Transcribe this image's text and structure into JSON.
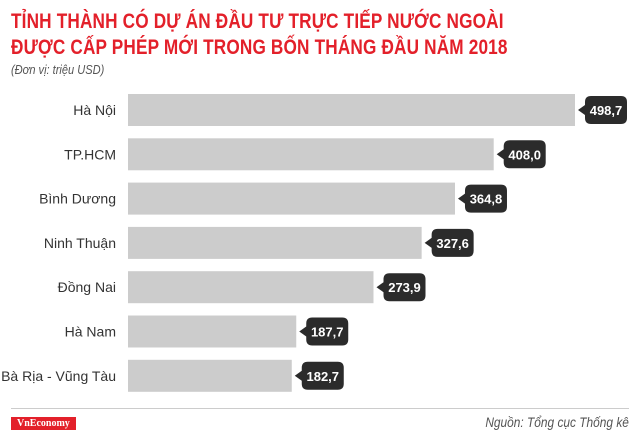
{
  "chart_data": {
    "type": "bar",
    "orientation": "horizontal",
    "title": "TỈNH THÀNH CÓ DỰ ÁN ĐẦU TƯ TRỰC TIẾP NƯỚC NGOÀI ĐƯỢC CẤP PHÉP MỚI TRONG BỐN THÁNG ĐẦU NĂM 2018",
    "title_lines": [
      "TỈNH THÀNH CÓ DỰ ÁN ĐẦU TƯ TRỰC TIẾP NƯỚC NGOÀI",
      "ĐƯỢC CẤP PHÉP MỚI TRONG BỐN THÁNG ĐẦU NĂM 2018"
    ],
    "subtitle": "(Đơn vị: triệu USD)",
    "categories": [
      "Hà Nội",
      "TP.HCM",
      "Bình Dương",
      "Ninh Thuận",
      "Đồng Nai",
      "Hà Nam",
      "Bà Rịa - Vũng Tàu"
    ],
    "values": [
      498.7,
      408.0,
      364.8,
      327.6,
      273.9,
      187.7,
      182.7
    ],
    "data_labels": [
      "498,7",
      "408,0",
      "364,8",
      "327,6",
      "273,9",
      "187,7",
      "182,7"
    ],
    "grid": false,
    "colors": {
      "bar": "#cccccc",
      "label_bg": "#2b2b2b",
      "title": "#e3202a"
    }
  },
  "footer": {
    "logo": "VnEconomy",
    "source": "Nguồn: Tổng cục Thống kê"
  }
}
